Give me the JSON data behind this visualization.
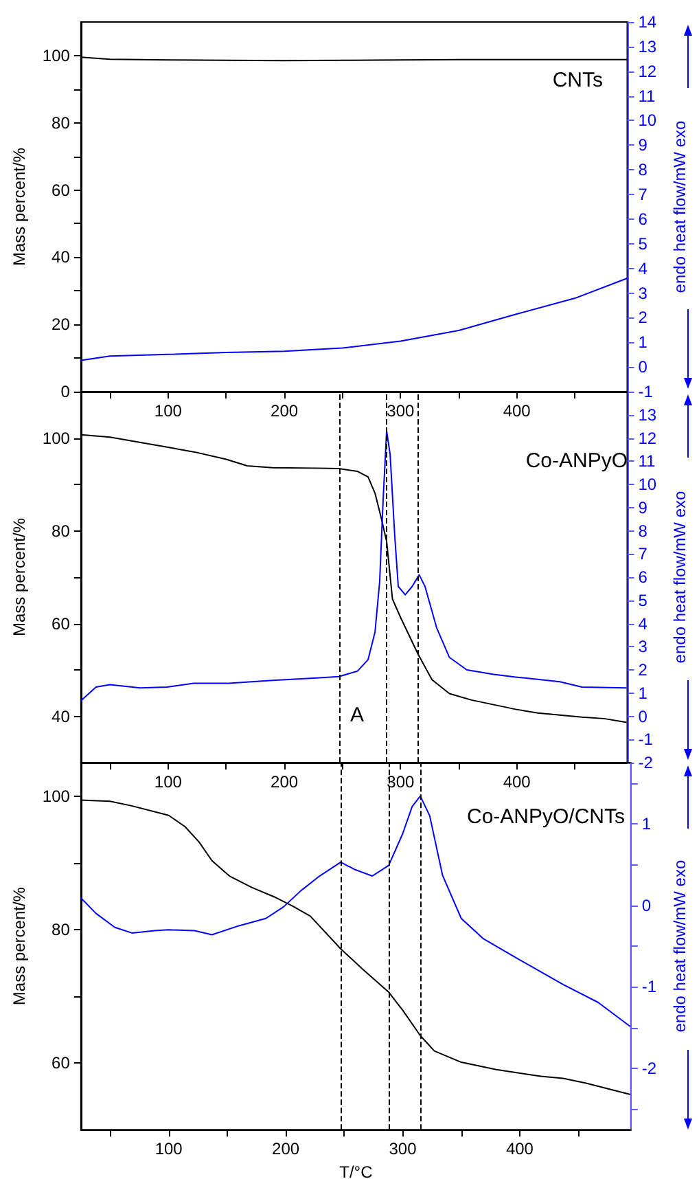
{
  "chart_data": [
    {
      "type": "line",
      "ylabel": "Mass percent/%",
      "y2label": "endo heat flow/mW exo",
      "annotations": [
        "CNTs"
      ],
      "marker": "none",
      "line_style": "solid",
      "xlim": [
        25,
        495
      ],
      "xticks": [
        {
          "value": 50,
          "label": null
        },
        100,
        {
          "value": 150,
          "label": null
        },
        200,
        {
          "value": 250,
          "label": null
        },
        300,
        {
          "value": 350,
          "label": null
        },
        400,
        {
          "value": 450,
          "label": null
        }
      ],
      "ylim": [
        0,
        110
      ],
      "yticks": [
        0,
        {
          "value": 10,
          "label": null
        },
        20,
        {
          "value": 30,
          "label": null
        },
        40,
        {
          "value": 50,
          "label": null
        },
        60,
        {
          "value": 70,
          "label": null
        },
        80,
        {
          "value": 90,
          "label": null
        },
        100
      ],
      "y2lim": [
        -1,
        14
      ],
      "y2ticks": [
        -1,
        0,
        1,
        2,
        3,
        4,
        5,
        6,
        7,
        8,
        9,
        10,
        11,
        12,
        13,
        14
      ],
      "series": [
        {
          "color": "#000000",
          "x": [
            25,
            50,
            100,
            150,
            200,
            250,
            300,
            350,
            400,
            450,
            495
          ],
          "values": [
            99.5,
            98.9,
            98.7,
            98.6,
            98.5,
            98.6,
            98.7,
            98.8,
            98.8,
            98.8,
            98.8
          ]
        },
        {
          "color": "#0000ff",
          "axis": "y2",
          "x": [
            25,
            50,
            100,
            150,
            200,
            250,
            300,
            350,
            400,
            450,
            495
          ],
          "values": [
            0.27,
            0.44,
            0.51,
            0.59,
            0.64,
            0.77,
            1.05,
            1.48,
            2.15,
            2.79,
            3.6
          ]
        }
      ]
    },
    {
      "type": "line",
      "ylabel": "Mass percent/%",
      "y2label": "endo heat flow/mW exo",
      "annotations": [
        "Co-ANPyO",
        "A"
      ],
      "marker": "none",
      "line_style": "solid",
      "xlim": [
        25,
        495
      ],
      "xticks": [
        {
          "value": 50,
          "label": null
        },
        100,
        {
          "value": 150,
          "label": null
        },
        200,
        {
          "value": 250,
          "label": null
        },
        300,
        {
          "value": 350,
          "label": null
        },
        400,
        {
          "value": 450,
          "label": null
        }
      ],
      "ylim": [
        30,
        110
      ],
      "yticks": [
        40,
        {
          "value": 50,
          "label": null
        },
        60,
        {
          "value": 70,
          "label": null
        },
        80,
        {
          "value": 90,
          "label": null
        },
        100
      ],
      "y2lim": [
        -2,
        14
      ],
      "y2ticks": [
        -2,
        -1,
        0,
        1,
        2,
        3,
        4,
        5,
        6,
        7,
        8,
        9,
        10,
        11,
        12,
        13
      ],
      "ref_lines": [
        {
          "axis": "x",
          "value": 247,
          "color": "#000000",
          "line_style": "dashed"
        },
        {
          "axis": "x",
          "value": 288,
          "color": "#000000",
          "line_style": "dashed"
        },
        {
          "axis": "x",
          "value": 315,
          "color": "#000000",
          "line_style": "dashed"
        }
      ],
      "series": [
        {
          "color": "#000000",
          "x": [
            25,
            50,
            100,
            126,
            150,
            168,
            190,
            228,
            247,
            263,
            272,
            278,
            283,
            288,
            293,
            300,
            315,
            327,
            342,
            361,
            380,
            399,
            418,
            456,
            475,
            494
          ],
          "values": [
            100.7,
            100.2,
            98.0,
            96.8,
            95.4,
            94.0,
            93.6,
            93.5,
            93.4,
            92.8,
            91.6,
            88.1,
            83.1,
            77.7,
            65.3,
            61.3,
            53.4,
            47.9,
            44.9,
            43.5,
            42.5,
            41.5,
            40.7,
            39.8,
            39.5,
            38.7
          ]
        },
        {
          "color": "#0000ff",
          "axis": "y2",
          "x": [
            25,
            38,
            50,
            76,
            99,
            122,
            152,
            190,
            228,
            247,
            263,
            272,
            278,
            282,
            285,
            288,
            291,
            295,
            298,
            304,
            310,
            316,
            321,
            331,
            342,
            357,
            380,
            399,
            437,
            456,
            494
          ],
          "values": [
            0.67,
            1.26,
            1.36,
            1.22,
            1.26,
            1.42,
            1.42,
            1.55,
            1.65,
            1.71,
            1.95,
            2.44,
            3.63,
            5.8,
            9.35,
            12.3,
            11.3,
            7.77,
            5.6,
            5.24,
            5.6,
            6.1,
            5.6,
            3.82,
            2.54,
            2.0,
            1.81,
            1.69,
            1.49,
            1.26,
            1.22
          ]
        }
      ]
    },
    {
      "type": "line",
      "xlabel": "T/°C",
      "ylabel": "Mass percent/%",
      "y2label": "endo heat flow/mW exo",
      "annotations": [
        "Co-ANPyO/CNTs"
      ],
      "marker": "none",
      "line_style": "solid",
      "xlim": [
        25,
        495
      ],
      "xticks": [
        {
          "value": 50,
          "label": null
        },
        100,
        {
          "value": 150,
          "label": null
        },
        200,
        {
          "value": 250,
          "label": null
        },
        300,
        {
          "value": 350,
          "label": null
        },
        400,
        {
          "value": 450,
          "label": null
        }
      ],
      "ylim": [
        50,
        105
      ],
      "yticks": [
        60,
        {
          "value": 70,
          "label": null
        },
        80,
        {
          "value": 90,
          "label": null
        },
        100
      ],
      "y2lim": [
        -2.75,
        1.75
      ],
      "y2ticks": [
        {
          "value": -2.5,
          "label": null
        },
        -2,
        {
          "value": -1.5,
          "label": null
        },
        -1,
        {
          "value": -0.5,
          "label": null
        },
        0,
        {
          "value": 0.5,
          "label": null
        },
        1,
        {
          "value": 1.5,
          "label": null
        }
      ],
      "ref_lines": [
        {
          "axis": "x",
          "value": 247,
          "color": "#000000",
          "line_style": "dashed"
        },
        {
          "axis": "x",
          "value": 288,
          "color": "#000000",
          "line_style": "dashed"
        },
        {
          "axis": "x",
          "value": 315,
          "color": "#000000",
          "line_style": "dashed"
        }
      ],
      "series": [
        {
          "color": "#000000",
          "x": [
            25,
            50,
            69,
            100,
            114,
            126,
            137,
            152,
            171,
            190,
            206,
            221,
            247,
            266,
            288,
            300,
            315,
            327,
            350,
            380,
            418,
            437,
            456,
            494
          ],
          "values": [
            99.4,
            99.2,
            98.5,
            97.1,
            95.4,
            93.1,
            90.3,
            88.0,
            86.3,
            84.9,
            83.5,
            82.0,
            77.1,
            74.0,
            70.6,
            67.9,
            64.1,
            61.8,
            60.1,
            59.0,
            58.0,
            57.7,
            57.0,
            55.3
          ]
        },
        {
          "color": "#0000ff",
          "axis": "y2",
          "x": [
            25,
            38,
            54,
            69,
            88,
            100,
            122,
            137,
            160,
            183,
            198,
            213,
            228,
            247,
            259,
            274,
            288,
            300,
            308,
            315,
            323,
            334,
            350,
            369,
            399,
            437,
            467,
            494
          ],
          "values": [
            0.09,
            -0.1,
            -0.27,
            -0.34,
            -0.31,
            -0.3,
            -0.31,
            -0.36,
            -0.25,
            -0.16,
            -0.02,
            0.18,
            0.35,
            0.53,
            0.44,
            0.36,
            0.49,
            0.88,
            1.21,
            1.34,
            1.1,
            0.37,
            -0.16,
            -0.41,
            -0.66,
            -0.97,
            -1.19,
            -1.48
          ]
        }
      ]
    }
  ]
}
